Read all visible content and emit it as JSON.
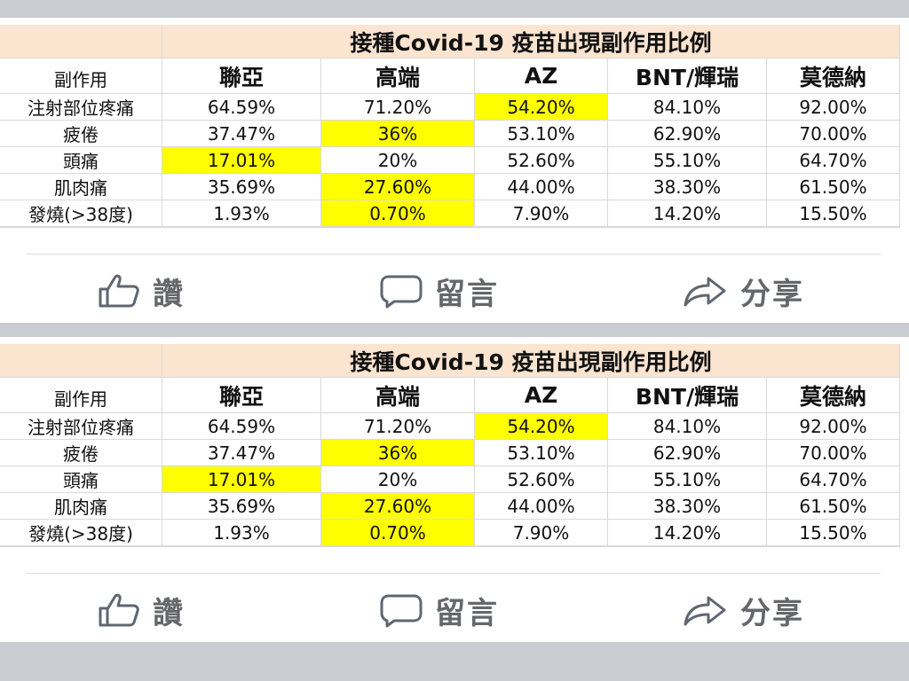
{
  "posts": [
    {
      "table": {
        "title": "接種Covid-19 疫苗出現副作用比例",
        "headers": [
          "副作用",
          "聯亞",
          "高端",
          "AZ",
          "BNT/輝瑞",
          "莫德納"
        ],
        "rows": [
          {
            "label": "注射部位疼痛",
            "values": [
              "64.59%",
              "71.20%",
              "54.20%",
              "84.10%",
              "92.00%"
            ],
            "highlight": [
              false,
              false,
              true,
              false,
              false
            ]
          },
          {
            "label": "疲倦",
            "values": [
              "37.47%",
              "36%",
              "53.10%",
              "62.90%",
              "70.00%"
            ],
            "highlight": [
              false,
              true,
              false,
              false,
              false
            ]
          },
          {
            "label": "頭痛",
            "values": [
              "17.01%",
              "20%",
              "52.60%",
              "55.10%",
              "64.70%"
            ],
            "highlight": [
              true,
              false,
              false,
              false,
              false
            ]
          },
          {
            "label": "肌肉痛",
            "values": [
              "35.69%",
              "27.60%",
              "44.00%",
              "38.30%",
              "61.50%"
            ],
            "highlight": [
              false,
              true,
              false,
              false,
              false
            ]
          },
          {
            "label": "發燒(>38度)",
            "values": [
              "1.93%",
              "0.70%",
              "7.90%",
              "14.20%",
              "15.50%"
            ],
            "highlight": [
              false,
              true,
              false,
              false,
              false
            ]
          }
        ],
        "highlight_color": "#ffff00",
        "title_bg": "#fbe4d0"
      },
      "actions": {
        "like": "讚",
        "comment": "留言",
        "share": "分享"
      }
    },
    {
      "table": {
        "title": "接種Covid-19 疫苗出現副作用比例",
        "headers": [
          "副作用",
          "聯亞",
          "高端",
          "AZ",
          "BNT/輝瑞",
          "莫德納"
        ],
        "rows": [
          {
            "label": "注射部位疼痛",
            "values": [
              "64.59%",
              "71.20%",
              "54.20%",
              "84.10%",
              "92.00%"
            ],
            "highlight": [
              false,
              false,
              true,
              false,
              false
            ]
          },
          {
            "label": "疲倦",
            "values": [
              "37.47%",
              "36%",
              "53.10%",
              "62.90%",
              "70.00%"
            ],
            "highlight": [
              false,
              true,
              false,
              false,
              false
            ]
          },
          {
            "label": "頭痛",
            "values": [
              "17.01%",
              "20%",
              "52.60%",
              "55.10%",
              "64.70%"
            ],
            "highlight": [
              true,
              false,
              false,
              false,
              false
            ]
          },
          {
            "label": "肌肉痛",
            "values": [
              "35.69%",
              "27.60%",
              "44.00%",
              "38.30%",
              "61.50%"
            ],
            "highlight": [
              false,
              true,
              false,
              false,
              false
            ]
          },
          {
            "label": "發燒(>38度)",
            "values": [
              "1.93%",
              "0.70%",
              "7.90%",
              "14.20%",
              "15.50%"
            ],
            "highlight": [
              false,
              true,
              false,
              false,
              false
            ]
          }
        ],
        "highlight_color": "#ffff00",
        "title_bg": "#fbe4d0"
      },
      "actions": {
        "like": "讚",
        "comment": "留言",
        "share": "分享"
      }
    }
  ],
  "icons": {
    "like": "thumbs-up-icon",
    "comment": "speech-bubble-icon",
    "share": "share-arrow-icon"
  }
}
